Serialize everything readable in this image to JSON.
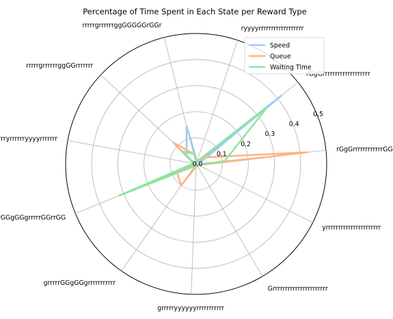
{
  "chart_data": {
    "type": "radar",
    "title": "Percentage of Time Spent in Each State per Reward Type",
    "categories": [
      "rGgGrrrrrrrrrrrrGGrGGrG",
      "rGgGrrrrrrrrrrrrrrrrrrr",
      "ryyyyrrrrrrrrrrrrrrrrrr",
      "rrrrrgrrrrrrggGGGGGrGGr",
      "rrrrrgrrrrrrggGGrrrrrrr",
      "rrrrryrrrrrryyyyrrrrrrr",
      "grrrrrGGgGGgrrrrrGGrrGG",
      "grrrrrGGgGGgrrrrrrrrrrr",
      "grrrrryyyyyyrrrrrrrrrrr",
      "Grrrrrrrrrrrrrrrrrrrrrr",
      "yrrrrrrrrrrrrrrrrrrrrrr"
    ],
    "radial_ticks": [
      0.0,
      0.1,
      0.2,
      0.3,
      0.4,
      0.5
    ],
    "radial_tick_labels": [
      "0.0",
      "0.1",
      "0.2",
      "0.3",
      "0.4",
      "0.5"
    ],
    "rmax": 0.5,
    "grid": true,
    "legend_position": "top-right",
    "series": [
      {
        "name": "Speed",
        "color": "#a1c9f4",
        "values": [
          0.01,
          0.42,
          0.01,
          0.15,
          0.05,
          0.01,
          0.28,
          0.01,
          0.01,
          0.01,
          0.01
        ]
      },
      {
        "name": "Queue",
        "color": "#ffb482",
        "values": [
          0.43,
          0.04,
          0.01,
          0.04,
          0.12,
          0.01,
          0.08,
          0.1,
          0.01,
          0.01,
          0.01
        ]
      },
      {
        "name": "Waiting Time",
        "color": "#8de5a1",
        "values": [
          0.11,
          0.35,
          0.01,
          0.04,
          0.07,
          0.01,
          0.32,
          0.01,
          0.01,
          0.01,
          0.01
        ]
      }
    ]
  }
}
